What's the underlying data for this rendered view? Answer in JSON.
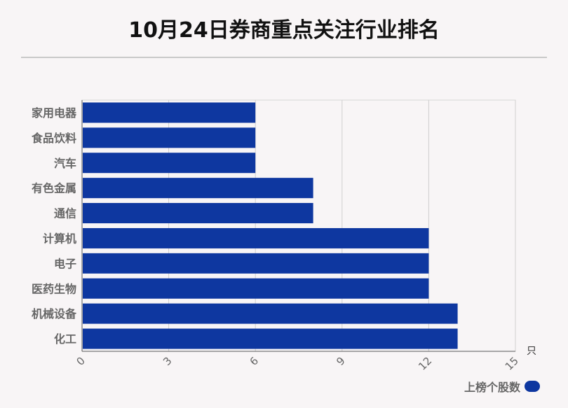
{
  "title": "10月24日券商重点关注行业排名",
  "chart_data": {
    "type": "bar",
    "orientation": "horizontal",
    "categories": [
      "家用电器",
      "食品饮料",
      "汽车",
      "有色金属",
      "通信",
      "计算机",
      "电子",
      "医药生物",
      "机械设备",
      "化工"
    ],
    "series": [
      {
        "name": "上榜个股数",
        "values": [
          6,
          6,
          6,
          8,
          8,
          12,
          12,
          12,
          13,
          13
        ]
      }
    ],
    "xlim": [
      0,
      15
    ],
    "xticks": [
      0,
      3,
      6,
      9,
      12,
      15
    ],
    "unit": "只",
    "grid": true,
    "legend_position": "bottom-right",
    "bar_color": "#0e37a0"
  }
}
